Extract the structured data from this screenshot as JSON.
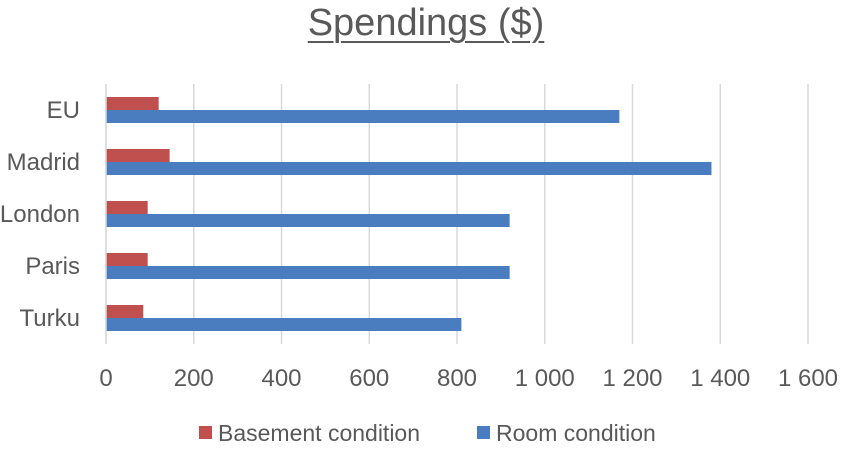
{
  "chart_data": {
    "type": "bar",
    "orientation": "horizontal",
    "title": "Spendings ($)",
    "categories": [
      "EU",
      "Madrid",
      "London",
      "Paris",
      "Turku"
    ],
    "series": [
      {
        "name": "Basement condition",
        "color": "#c0504d",
        "values": [
          120,
          145,
          95,
          95,
          85
        ]
      },
      {
        "name": "Room condition",
        "color": "#4a7dc0",
        "values": [
          1170,
          1380,
          920,
          920,
          810
        ]
      }
    ],
    "xlim": [
      0,
      1600
    ],
    "xticks": [
      0,
      200,
      400,
      600,
      800,
      1000,
      1200,
      1400,
      1600
    ],
    "xtick_labels": [
      "0",
      "200",
      "400",
      "600",
      "800",
      "1 000",
      "1 200",
      "1 400",
      "1 600"
    ],
    "grid": "vertical",
    "legend_position": "bottom",
    "xlabel": "",
    "ylabel": ""
  }
}
